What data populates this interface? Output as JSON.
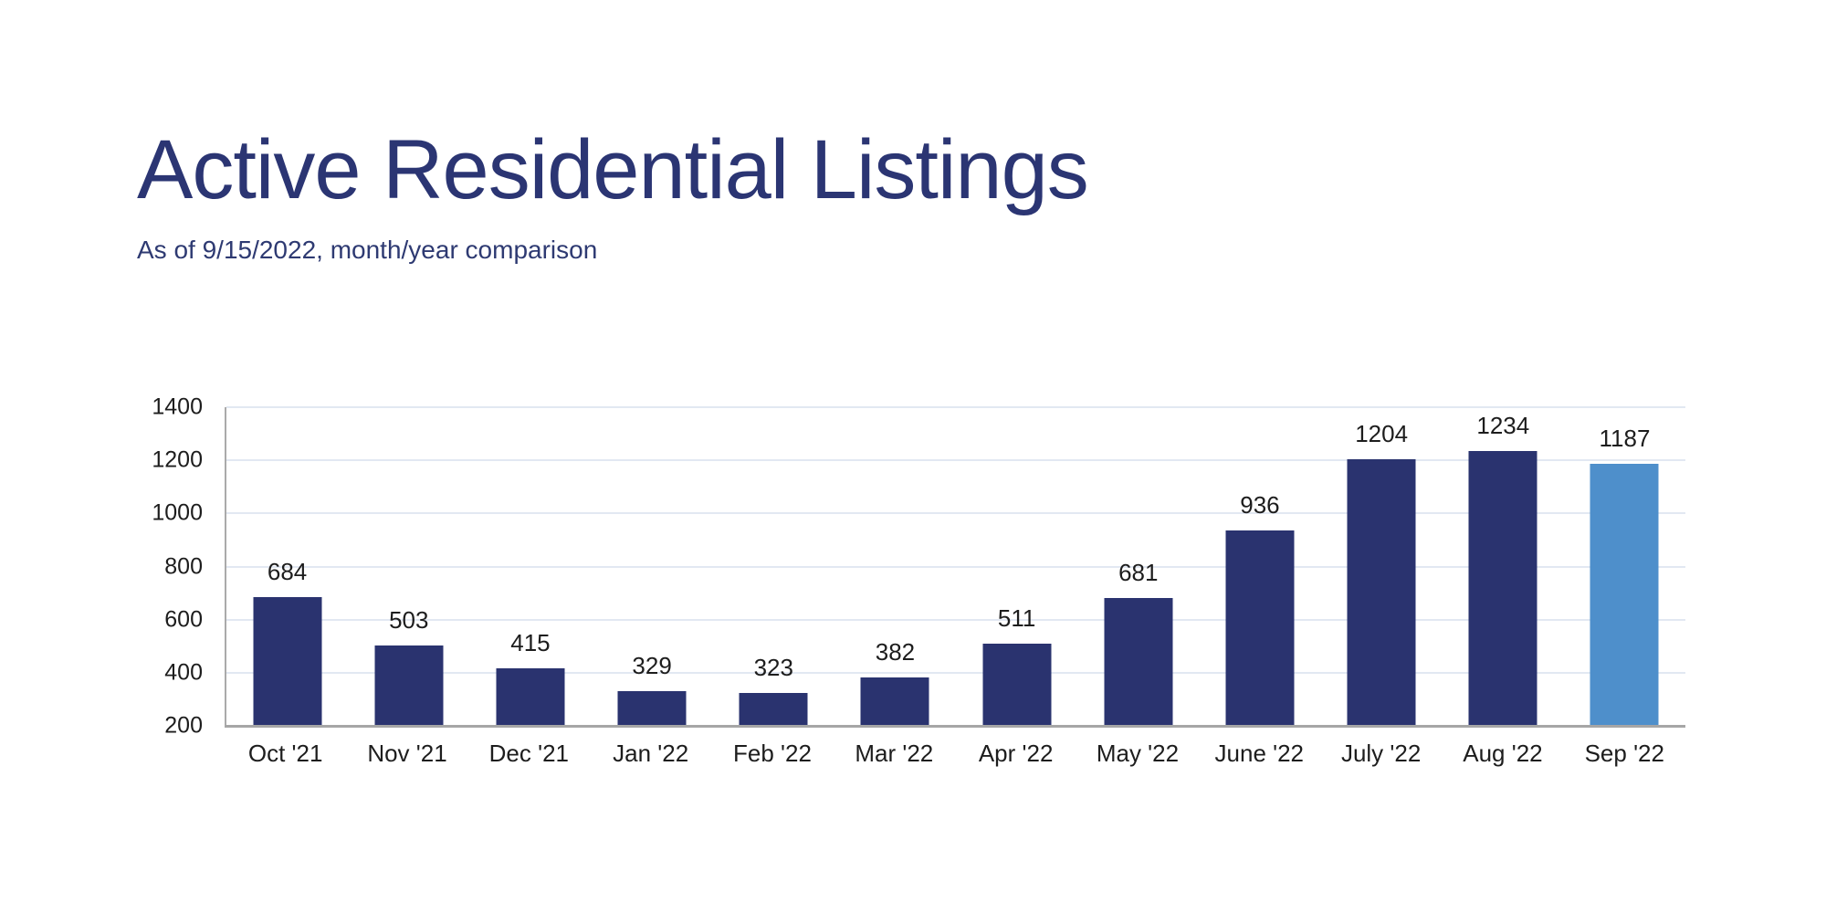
{
  "header": {
    "title": "Active Residential Listings",
    "subtitle": "As of 9/15/2022, month/year comparison",
    "title_color": "#2b3573"
  },
  "chart_data": {
    "type": "bar",
    "title": "Active Residential Listings",
    "subtitle": "As of 9/15/2022, month/year comparison",
    "categories": [
      "Oct '21",
      "Nov '21",
      "Dec '21",
      "Jan '22",
      "Feb '22",
      "Mar '22",
      "Apr '22",
      "May '22",
      "June '22",
      "July '22",
      "Aug '22",
      "Sep '22"
    ],
    "values": [
      684,
      503,
      415,
      329,
      323,
      382,
      511,
      681,
      936,
      1204,
      1234,
      1187
    ],
    "xlabel": "",
    "ylabel": "",
    "ylim": [
      200,
      1400
    ],
    "yticks": [
      200,
      400,
      600,
      800,
      1000,
      1200,
      1400
    ],
    "grid": true,
    "legend": "none",
    "data_labels": true,
    "bar_color": "#2a336f",
    "highlight_bar_color": "#4e8fcb",
    "highlight_index": 11,
    "gridline_color": "#e2e8f2",
    "baseline_color": "#a6a6a6",
    "label_color": "#1d1d1d"
  }
}
